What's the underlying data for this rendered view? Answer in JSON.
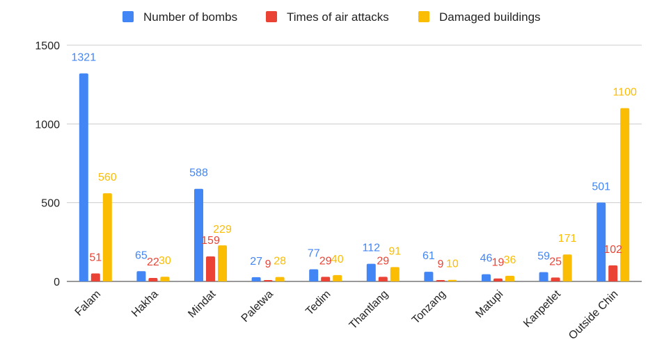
{
  "chart_data": {
    "type": "bar",
    "categories": [
      "Falam",
      "Hakha",
      "Mindat",
      "Paletwa",
      "Tedim",
      "Thantlang",
      "Tonzang",
      "Matupi",
      "Kanpetlet",
      "Outside Chin"
    ],
    "series": [
      {
        "name": "Number of bombs",
        "color": "#4285f4",
        "values": [
          1321,
          65,
          588,
          27,
          77,
          112,
          61,
          46,
          59,
          501
        ]
      },
      {
        "name": "Times of air attacks",
        "color": "#ea4335",
        "values": [
          51,
          22,
          159,
          9,
          29,
          29,
          9,
          19,
          25,
          102
        ]
      },
      {
        "name": "Damaged buildings",
        "color": "#fbbc04",
        "values": [
          560,
          30,
          229,
          28,
          40,
          91,
          10,
          36,
          171,
          1100
        ]
      }
    ],
    "y_ticks": [
      "0",
      "500",
      "1000",
      "1500"
    ],
    "ylim": [
      0,
      1500
    ],
    "grid": true,
    "legend_position": "top"
  }
}
